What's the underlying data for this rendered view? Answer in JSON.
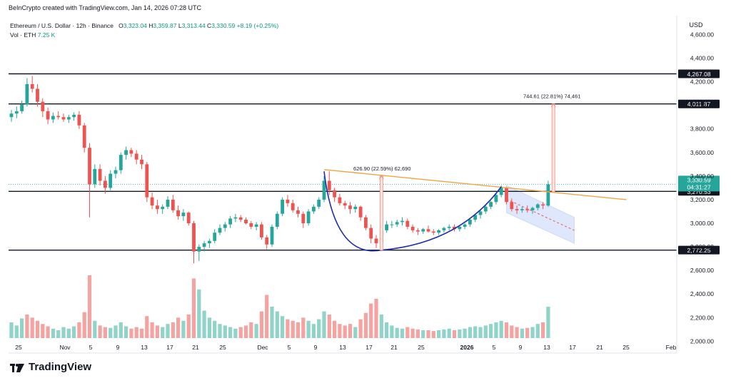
{
  "header": {
    "attribution": "BeInCrypto created with TradingView.com, Jan 14, 2026 07:28 UTC"
  },
  "legend": {
    "symbol": "Ethereum / U.S. Dollar · 12h · Binance",
    "o_label": "O",
    "o_value": "3,323.04",
    "h_label": "H",
    "h_value": "3,359.87",
    "l_label": "L",
    "l_value": "3,313.44",
    "c_label": "C",
    "c_value": "3,330.59",
    "change": "+8.19 (+0.25%)",
    "vol_label": "Vol · ETH",
    "vol_value": "7.25 K"
  },
  "brand": {
    "name": "TradingView"
  },
  "colors": {
    "up": "#26a69a",
    "down": "#ef5350",
    "vol_up": "#8fd3c9",
    "vol_down": "#f4a3a0",
    "trend": "#f0a543",
    "arc": "#1d2ea8",
    "target": "#f28b82",
    "channel": "#c8d6f5",
    "hline": "#131722"
  },
  "chart_data": {
    "type": "candlestick",
    "currency": "USD",
    "y_ticks": [
      "4,600.00",
      "4,400.00",
      "4,200.00",
      "4,000.00",
      "3,800.00",
      "3,600.00",
      "3,400.00",
      "3,200.00",
      "3,000.00",
      "2,800.00",
      "2,600.00",
      "2,400.00",
      "2,200.00",
      "2,000.00"
    ],
    "y_range": [
      1990,
      4760
    ],
    "x_ticks": [
      {
        "label": "25",
        "bold": false
      },
      {
        "label": "Nov",
        "bold": false
      },
      {
        "label": "5",
        "bold": false
      },
      {
        "label": "9",
        "bold": false
      },
      {
        "label": "13",
        "bold": false
      },
      {
        "label": "17",
        "bold": false
      },
      {
        "label": "21",
        "bold": false
      },
      {
        "label": "25",
        "bold": false
      },
      {
        "label": "Dec",
        "bold": false
      },
      {
        "label": "5",
        "bold": false
      },
      {
        "label": "9",
        "bold": false
      },
      {
        "label": "13",
        "bold": false
      },
      {
        "label": "17",
        "bold": false
      },
      {
        "label": "21",
        "bold": false
      },
      {
        "label": "25",
        "bold": false
      },
      {
        "label": "2026",
        "bold": true
      },
      {
        "label": "5",
        "bold": false
      },
      {
        "label": "9",
        "bold": false
      },
      {
        "label": "13",
        "bold": false
      },
      {
        "label": "17",
        "bold": false
      },
      {
        "label": "21",
        "bold": false
      },
      {
        "label": "25",
        "bold": false
      },
      {
        "label": "Feb",
        "bold": false
      }
    ],
    "price_levels": [
      {
        "value": 4267.08,
        "label": "4,267.08"
      },
      {
        "value": 4011.87,
        "label": "4,011.87"
      },
      {
        "value": 3270.53,
        "label": "3,270.53"
      },
      {
        "value": 2772.25,
        "label": "2,772.25"
      }
    ],
    "current_price": {
      "value": 3330.59,
      "label": "3,330.59",
      "countdown": "04:31:27"
    },
    "annotations": [
      {
        "text": "626.90 (22.59%) 62,690",
        "from": 2772.25,
        "to": 3399.15
      },
      {
        "text": "744.61 (22.81%) 74,461",
        "from": 3267.26,
        "to": 4011.87
      }
    ],
    "candles": [
      [
        3900,
        3960,
        3860,
        3930
      ],
      [
        3930,
        3990,
        3890,
        3950
      ],
      [
        3950,
        4040,
        3930,
        4010
      ],
      [
        4010,
        4230,
        3990,
        4180
      ],
      [
        4180,
        4250,
        4110,
        4140
      ],
      [
        4140,
        4180,
        3990,
        4030
      ],
      [
        4030,
        4060,
        3900,
        3950
      ],
      [
        3950,
        3980,
        3840,
        3880
      ],
      [
        3880,
        3940,
        3850,
        3910
      ],
      [
        3910,
        3950,
        3880,
        3900
      ],
      [
        3900,
        3930,
        3860,
        3880
      ],
      [
        3880,
        3920,
        3850,
        3900
      ],
      [
        3900,
        3940,
        3870,
        3920
      ],
      [
        3920,
        3950,
        3800,
        3830
      ],
      [
        3830,
        3850,
        3600,
        3640
      ],
      [
        3640,
        3680,
        3050,
        3330
      ],
      [
        3330,
        3500,
        3300,
        3460
      ],
      [
        3460,
        3500,
        3320,
        3360
      ],
      [
        3360,
        3400,
        3250,
        3300
      ],
      [
        3300,
        3450,
        3280,
        3420
      ],
      [
        3420,
        3480,
        3380,
        3450
      ],
      [
        3450,
        3600,
        3420,
        3580
      ],
      [
        3580,
        3650,
        3540,
        3620
      ],
      [
        3620,
        3640,
        3560,
        3590
      ],
      [
        3590,
        3620,
        3500,
        3540
      ],
      [
        3540,
        3580,
        3460,
        3500
      ],
      [
        3500,
        3520,
        3180,
        3220
      ],
      [
        3220,
        3260,
        3120,
        3150
      ],
      [
        3150,
        3200,
        3080,
        3120
      ],
      [
        3120,
        3160,
        3080,
        3140
      ],
      [
        3140,
        3230,
        3120,
        3200
      ],
      [
        3200,
        3240,
        3090,
        3110
      ],
      [
        3110,
        3150,
        3030,
        3060
      ],
      [
        3060,
        3120,
        3020,
        3090
      ],
      [
        3090,
        3100,
        2980,
        3000
      ],
      [
        3000,
        3020,
        2660,
        2760
      ],
      [
        2760,
        2820,
        2680,
        2800
      ],
      [
        2800,
        2850,
        2760,
        2830
      ],
      [
        2830,
        2870,
        2790,
        2850
      ],
      [
        2850,
        2950,
        2830,
        2920
      ],
      [
        2920,
        2990,
        2900,
        2960
      ],
      [
        2960,
        3010,
        2930,
        2990
      ],
      [
        2990,
        3060,
        2960,
        3040
      ],
      [
        3040,
        3080,
        3010,
        3050
      ],
      [
        3050,
        3070,
        3010,
        3030
      ],
      [
        3030,
        3050,
        2990,
        3000
      ],
      [
        3000,
        3020,
        2950,
        2970
      ],
      [
        2970,
        3010,
        2940,
        2990
      ],
      [
        2990,
        3010,
        2860,
        2880
      ],
      [
        2880,
        2900,
        2780,
        2820
      ],
      [
        2820,
        2990,
        2800,
        2970
      ],
      [
        2970,
        3100,
        2950,
        3080
      ],
      [
        3080,
        3220,
        3060,
        3200
      ],
      [
        3200,
        3240,
        3140,
        3170
      ],
      [
        3170,
        3200,
        3090,
        3110
      ],
      [
        3110,
        3140,
        3050,
        3080
      ],
      [
        3080,
        3100,
        2960,
        3000
      ],
      [
        3000,
        3120,
        2980,
        3100
      ],
      [
        3100,
        3160,
        3080,
        3140
      ],
      [
        3140,
        3220,
        3120,
        3200
      ],
      [
        3200,
        3400,
        3180,
        3360
      ],
      [
        3360,
        3440,
        3240,
        3280
      ],
      [
        3280,
        3300,
        3180,
        3220
      ],
      [
        3220,
        3250,
        3150,
        3170
      ],
      [
        3170,
        3190,
        3120,
        3150
      ],
      [
        3150,
        3180,
        3080,
        3120
      ],
      [
        3120,
        3160,
        3090,
        3140
      ],
      [
        3140,
        3150,
        3020,
        3050
      ],
      [
        3050,
        3070,
        2940,
        2960
      ],
      [
        2960,
        2990,
        2830,
        2870
      ],
      [
        2870,
        2900,
        2790,
        2830
      ],
      [
        2830,
        2960,
        2800,
        2940
      ],
      [
        2940,
        3020,
        2920,
        2990
      ],
      [
        2990,
        3020,
        2960,
        2990
      ],
      [
        2990,
        3030,
        2970,
        3010
      ],
      [
        3010,
        3050,
        2980,
        3020
      ],
      [
        3020,
        3040,
        2950,
        2970
      ],
      [
        2970,
        2990,
        2920,
        2940
      ],
      [
        2940,
        2960,
        2900,
        2930
      ],
      [
        2930,
        2960,
        2910,
        2950
      ],
      [
        2950,
        2980,
        2920,
        2930
      ],
      [
        2930,
        2950,
        2900,
        2920
      ],
      [
        2920,
        2950,
        2900,
        2940
      ],
      [
        2940,
        2970,
        2920,
        2960
      ],
      [
        2960,
        2990,
        2940,
        2970
      ],
      [
        2970,
        2990,
        2930,
        2950
      ],
      [
        2950,
        2980,
        2930,
        2970
      ],
      [
        2970,
        3000,
        2950,
        2990
      ],
      [
        2990,
        3040,
        2970,
        3030
      ],
      [
        3030,
        3080,
        3010,
        3070
      ],
      [
        3070,
        3110,
        3040,
        3100
      ],
      [
        3100,
        3160,
        3080,
        3140
      ],
      [
        3140,
        3190,
        3120,
        3180
      ],
      [
        3180,
        3250,
        3160,
        3240
      ],
      [
        3240,
        3320,
        3220,
        3300
      ],
      [
        3300,
        3310,
        3160,
        3180
      ],
      [
        3180,
        3210,
        3100,
        3120
      ],
      [
        3120,
        3150,
        3080,
        3110
      ],
      [
        3110,
        3140,
        3090,
        3120
      ],
      [
        3120,
        3150,
        3090,
        3110
      ],
      [
        3110,
        3140,
        3080,
        3130
      ],
      [
        3130,
        3170,
        3110,
        3160
      ],
      [
        3160,
        3180,
        3120,
        3150
      ],
      [
        3150,
        3360,
        3140,
        3330
      ]
    ],
    "volumes": [
      [
        0.2,
        1
      ],
      [
        0.16,
        1
      ],
      [
        0.25,
        1
      ],
      [
        0.3,
        0
      ],
      [
        0.26,
        0
      ],
      [
        0.22,
        0
      ],
      [
        0.18,
        0
      ],
      [
        0.15,
        0
      ],
      [
        0.12,
        1
      ],
      [
        0.1,
        1
      ],
      [
        0.14,
        1
      ],
      [
        0.12,
        1
      ],
      [
        0.15,
        1
      ],
      [
        0.2,
        0
      ],
      [
        0.33,
        0
      ],
      [
        0.8,
        0
      ],
      [
        0.22,
        1
      ],
      [
        0.16,
        0
      ],
      [
        0.14,
        0
      ],
      [
        0.13,
        1
      ],
      [
        0.16,
        1
      ],
      [
        0.2,
        1
      ],
      [
        0.15,
        1
      ],
      [
        0.12,
        0
      ],
      [
        0.14,
        0
      ],
      [
        0.12,
        0
      ],
      [
        0.28,
        0
      ],
      [
        0.2,
        0
      ],
      [
        0.16,
        0
      ],
      [
        0.14,
        1
      ],
      [
        0.18,
        1
      ],
      [
        0.2,
        0
      ],
      [
        0.26,
        0
      ],
      [
        0.22,
        1
      ],
      [
        0.3,
        0
      ],
      [
        0.76,
        0
      ],
      [
        0.62,
        1
      ],
      [
        0.35,
        1
      ],
      [
        0.26,
        1
      ],
      [
        0.22,
        1
      ],
      [
        0.18,
        1
      ],
      [
        0.16,
        1
      ],
      [
        0.14,
        1
      ],
      [
        0.12,
        1
      ],
      [
        0.14,
        0
      ],
      [
        0.16,
        0
      ],
      [
        0.2,
        0
      ],
      [
        0.18,
        1
      ],
      [
        0.34,
        0
      ],
      [
        0.55,
        0
      ],
      [
        0.4,
        1
      ],
      [
        0.34,
        1
      ],
      [
        0.28,
        1
      ],
      [
        0.24,
        0
      ],
      [
        0.22,
        0
      ],
      [
        0.2,
        0
      ],
      [
        0.26,
        0
      ],
      [
        0.22,
        1
      ],
      [
        0.18,
        1
      ],
      [
        0.24,
        1
      ],
      [
        0.34,
        1
      ],
      [
        0.3,
        0
      ],
      [
        0.22,
        0
      ],
      [
        0.18,
        0
      ],
      [
        0.16,
        0
      ],
      [
        0.18,
        0
      ],
      [
        0.14,
        1
      ],
      [
        0.24,
        0
      ],
      [
        0.32,
        0
      ],
      [
        0.44,
        0
      ],
      [
        0.5,
        0
      ],
      [
        0.3,
        1
      ],
      [
        0.2,
        1
      ],
      [
        0.16,
        1
      ],
      [
        0.13,
        1
      ],
      [
        0.12,
        1
      ],
      [
        0.14,
        0
      ],
      [
        0.12,
        0
      ],
      [
        0.11,
        0
      ],
      [
        0.1,
        1
      ],
      [
        0.1,
        0
      ],
      [
        0.09,
        0
      ],
      [
        0.1,
        1
      ],
      [
        0.11,
        1
      ],
      [
        0.12,
        1
      ],
      [
        0.1,
        0
      ],
      [
        0.11,
        1
      ],
      [
        0.12,
        1
      ],
      [
        0.14,
        1
      ],
      [
        0.15,
        1
      ],
      [
        0.14,
        1
      ],
      [
        0.16,
        1
      ],
      [
        0.18,
        1
      ],
      [
        0.2,
        1
      ],
      [
        0.22,
        1
      ],
      [
        0.2,
        0
      ],
      [
        0.16,
        0
      ],
      [
        0.14,
        0
      ],
      [
        0.12,
        1
      ],
      [
        0.13,
        0
      ],
      [
        0.14,
        1
      ],
      [
        0.18,
        1
      ],
      [
        0.2,
        0
      ],
      [
        0.4,
        1
      ]
    ]
  }
}
